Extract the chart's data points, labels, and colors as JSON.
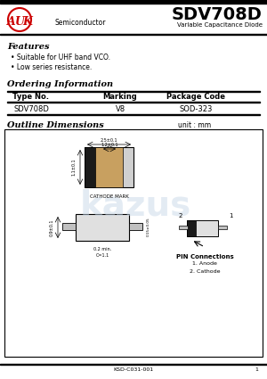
{
  "title": "SDV708D",
  "subtitle": "Variable Capacitance Diode",
  "company": "AUK",
  "company_suffix": "Semiconductor",
  "features_title": "Features",
  "features": [
    "Suitable for UHF band VCO.",
    "Low series resistance."
  ],
  "ordering_title": "Ordering Information",
  "table_headers": [
    "Type No.",
    "Marking",
    "Package Code"
  ],
  "table_row": [
    "SDV708D",
    "V8",
    "SOD-323"
  ],
  "outline_title": "Outline Dimensions",
  "unit_label": "unit : mm",
  "pin_connections_title": "PIN Connections",
  "pin_connections": [
    "1. Anode",
    "2. Cathode"
  ],
  "footer": "KSD-C031-001",
  "page_number": "1",
  "bg_color": "#ffffff",
  "border_color": "#000000",
  "header_line_color": "#000000",
  "text_color": "#000000",
  "logo_red": "#cc0000",
  "watermark_color": "#c8d8e8"
}
